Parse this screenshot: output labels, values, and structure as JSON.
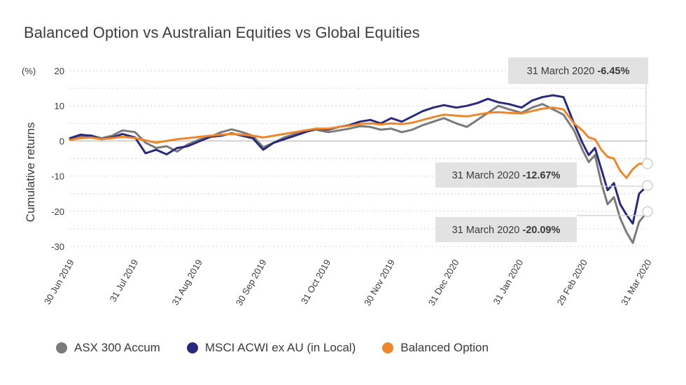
{
  "title": "Balanced Option vs Australian Equities vs Global Equities",
  "chart_data": {
    "type": "line",
    "title": "Balanced Option vs Australian Equities vs Global Equities",
    "ylabel": "Cumulative returns",
    "yunit": "(%)",
    "ylim": [
      -30,
      20
    ],
    "yticks": [
      20,
      10,
      0,
      -10,
      -20,
      -30
    ],
    "grid": "horizontal dotted",
    "legend_position": "bottom",
    "x_tick_labels": [
      "30 Jun 2019",
      "31 Jul 2019",
      "31 Aug 2019",
      "30 Sep 2019",
      "31 Oct 2019",
      "30 Nov 2019",
      "31 Dec 2020",
      "31 Jan 2020",
      "29 Feb 2020",
      "31 Mar 2020"
    ],
    "x": [
      "2019-06-30",
      "2019-07-05",
      "2019-07-10",
      "2019-07-15",
      "2019-07-20",
      "2019-07-25",
      "2019-07-31",
      "2019-08-05",
      "2019-08-10",
      "2019-08-15",
      "2019-08-20",
      "2019-08-25",
      "2019-08-31",
      "2019-09-05",
      "2019-09-10",
      "2019-09-15",
      "2019-09-20",
      "2019-09-25",
      "2019-09-30",
      "2019-10-05",
      "2019-10-10",
      "2019-10-15",
      "2019-10-20",
      "2019-10-25",
      "2019-10-31",
      "2019-11-05",
      "2019-11-10",
      "2019-11-15",
      "2019-11-20",
      "2019-11-25",
      "2019-11-30",
      "2019-12-05",
      "2019-12-10",
      "2019-12-15",
      "2019-12-20",
      "2019-12-25",
      "2019-12-31",
      "2020-01-05",
      "2020-01-10",
      "2020-01-15",
      "2020-01-20",
      "2020-01-25",
      "2020-01-31",
      "2020-02-05",
      "2020-02-10",
      "2020-02-15",
      "2020-02-20",
      "2020-02-25",
      "2020-02-29",
      "2020-03-03",
      "2020-03-06",
      "2020-03-09",
      "2020-03-12",
      "2020-03-15",
      "2020-03-18",
      "2020-03-21",
      "2020-03-24",
      "2020-03-27",
      "2020-03-31"
    ],
    "series": [
      {
        "name": "ASX 300 Accum",
        "color": "#7a7a7a",
        "values": [
          0.5,
          1.2,
          1.6,
          0.8,
          1.5,
          3.0,
          2.5,
          -0.5,
          -2.0,
          -1.5,
          -3.0,
          -1.0,
          0.5,
          1.2,
          2.5,
          3.3,
          2.5,
          1.5,
          -1.8,
          -0.5,
          1.0,
          2.0,
          2.6,
          3.2,
          2.5,
          3.0,
          3.5,
          4.2,
          4.0,
          3.2,
          3.5,
          2.5,
          3.2,
          4.5,
          5.5,
          6.5,
          5.0,
          4.0,
          6.0,
          8.0,
          10.0,
          9.0,
          8.0,
          9.5,
          10.5,
          9.0,
          7.5,
          3.0,
          -2.5,
          -6.0,
          -4.0,
          -12.0,
          -18.0,
          -16.0,
          -22.0,
          -26.0,
          -29.0,
          -23.0,
          -20.09
        ]
      },
      {
        "name": "MSCI ACWI ex AU (in Local)",
        "color": "#2a2a7c",
        "values": [
          0.8,
          1.8,
          1.5,
          0.5,
          1.0,
          2.0,
          1.0,
          -3.5,
          -2.5,
          -3.8,
          -2.0,
          -1.5,
          0.0,
          1.2,
          1.5,
          2.2,
          1.5,
          0.8,
          -2.5,
          -0.5,
          0.5,
          1.5,
          2.5,
          3.5,
          3.2,
          4.0,
          4.5,
          5.5,
          6.0,
          5.0,
          6.5,
          5.5,
          7.0,
          8.5,
          9.5,
          10.2,
          9.5,
          10.0,
          10.8,
          12.0,
          11.0,
          10.5,
          9.5,
          11.5,
          12.5,
          13.0,
          12.5,
          5.0,
          -0.5,
          -4.0,
          -2.0,
          -8.0,
          -14.0,
          -12.0,
          -18.0,
          -21.0,
          -23.5,
          -15.0,
          -12.67
        ]
      },
      {
        "name": "Balanced Option",
        "color": "#f0862b",
        "values": [
          0.3,
          0.8,
          1.0,
          0.5,
          0.8,
          1.2,
          0.8,
          0.2,
          -0.5,
          0.0,
          0.5,
          0.8,
          1.2,
          1.5,
          1.8,
          2.0,
          1.8,
          1.5,
          1.0,
          1.5,
          2.0,
          2.5,
          3.0,
          3.5,
          3.5,
          4.0,
          4.3,
          4.8,
          5.0,
          4.7,
          5.0,
          4.8,
          5.2,
          6.0,
          6.8,
          7.5,
          7.2,
          7.0,
          7.5,
          8.0,
          8.2,
          8.0,
          7.8,
          8.5,
          9.2,
          9.5,
          9.0,
          5.0,
          3.0,
          1.0,
          0.5,
          -2.5,
          -4.5,
          -5.0,
          -8.5,
          -10.5,
          -8.0,
          -6.5,
          -6.45
        ]
      }
    ],
    "annotations": [
      {
        "date_text": "31 March 2020",
        "value_text": "-6.45%"
      },
      {
        "date_text": "31 March 2020",
        "value_text": "-12.67%"
      },
      {
        "date_text": "31 March 2020",
        "value_text": "-20.09%"
      }
    ]
  },
  "colors": {
    "asx": "#7a7a7a",
    "msci": "#2a2a7c",
    "balanced": "#f0862b",
    "callout_bg": "#e2e2e2",
    "grid": "#c8c8c8"
  }
}
